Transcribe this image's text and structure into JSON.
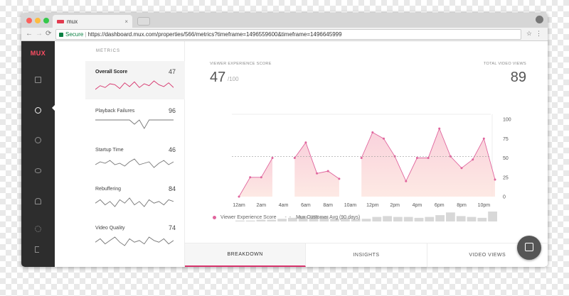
{
  "browser": {
    "tab_title": "mux",
    "tab_close": "×",
    "nav": {
      "back": "←",
      "forward": "→",
      "reload": "⟳"
    },
    "secure_label": "Secure",
    "separator": "|",
    "url": "https://dashboard.mux.com/properties/566/metrics?timeframe=1496559600&timeframe=1496645999",
    "star": "☆",
    "menu": "⋮"
  },
  "sidebar": {
    "logo": "MUX",
    "icons": [
      "folder-icon",
      "chart-icon",
      "alert-icon",
      "eye-icon",
      "bell-icon",
      "gear-icon",
      "logout-icon"
    ],
    "active_index": 1
  },
  "metrics": {
    "title": "METRICS",
    "items": [
      {
        "label": "Overall Score",
        "value": "47",
        "selected": true,
        "spark": [
          42,
          46,
          44,
          48,
          47,
          43,
          49,
          45,
          50,
          44,
          48,
          46,
          51,
          47,
          45,
          49,
          44
        ]
      },
      {
        "label": "Playback Failures",
        "value": "96",
        "selected": false,
        "spark": [
          96,
          96,
          96,
          96,
          96,
          96,
          96,
          96,
          92,
          96,
          88,
          96,
          96,
          96,
          96,
          96,
          96
        ]
      },
      {
        "label": "Startup Time",
        "value": "46",
        "selected": false,
        "spark": [
          45,
          47,
          46,
          48,
          45,
          46,
          44,
          47,
          49,
          45,
          46,
          47,
          43,
          46,
          48,
          45,
          47
        ]
      },
      {
        "label": "Rebuffering",
        "value": "84",
        "selected": false,
        "spark": [
          84,
          86,
          83,
          85,
          82,
          86,
          84,
          87,
          83,
          85,
          82,
          86,
          84,
          85,
          83,
          86,
          85
        ]
      },
      {
        "label": "Video Quality",
        "value": "74",
        "selected": false,
        "spark": [
          74,
          76,
          73,
          75,
          77,
          74,
          72,
          76,
          74,
          75,
          73,
          77,
          75,
          74,
          76,
          73,
          75
        ]
      }
    ]
  },
  "summary": {
    "score_label": "VIEWER EXPERIENCE SCORE",
    "score_value": "47",
    "score_max": "/100",
    "views_label": "TOTAL VIDEO VIEWS",
    "views_value": "89"
  },
  "chart_data": {
    "type": "area",
    "x_tick_labels": [
      "12am",
      "2am",
      "4am",
      "6am",
      "8am",
      "10am",
      "12pm",
      "2pm",
      "4pm",
      "6pm",
      "8pm",
      "10pm"
    ],
    "y_ticks": [
      0,
      25,
      50,
      75,
      100
    ],
    "ylim": [
      0,
      100
    ],
    "series": [
      {
        "name": "Viewer Experience Score",
        "color": "#e0659d",
        "segments": [
          [
            [
              0,
              0
            ],
            [
              1,
              25
            ],
            [
              2,
              25
            ],
            [
              3,
              50
            ]
          ],
          [
            [
              5,
              50
            ],
            [
              6,
              70
            ],
            [
              7,
              30
            ],
            [
              8,
              33
            ],
            [
              9,
              23
            ]
          ],
          [
            [
              11,
              50
            ],
            [
              12,
              83
            ],
            [
              13,
              75
            ],
            [
              14,
              52
            ],
            [
              15,
              20
            ],
            [
              16,
              50
            ],
            [
              17,
              50
            ],
            [
              18,
              88
            ],
            [
              19,
              52
            ],
            [
              20,
              37
            ],
            [
              21,
              48
            ],
            [
              22,
              75
            ],
            [
              23,
              22
            ]
          ]
        ]
      },
      {
        "name": "Mux Customer Avg (90 days)",
        "value": 52,
        "style": "dashed"
      }
    ],
    "views_bars": [
      1,
      1,
      2,
      2,
      3,
      4,
      6,
      7,
      5,
      3,
      4,
      3,
      3,
      5,
      6,
      5,
      5,
      4,
      5,
      7,
      10,
      6,
      5,
      4,
      11
    ],
    "grid": false,
    "legend_position": "bottom-left"
  },
  "tabs": [
    {
      "label": "BREAKDOWN",
      "active": true
    },
    {
      "label": "INSIGHTS",
      "active": false
    },
    {
      "label": "VIDEO VIEWS",
      "active": false
    }
  ],
  "colors": {
    "accent": "#d6336c",
    "area_fill": "#fbdde1",
    "sidebar_bg": "#2d2d2d",
    "logo": "#ff4e64"
  }
}
